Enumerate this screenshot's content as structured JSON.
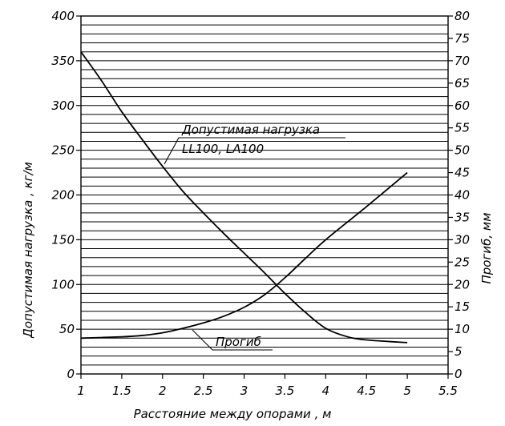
{
  "chart_data": {
    "type": "line",
    "xlabel": "Расстояние между опорами , м",
    "ylabel": "Допустимая нагрузка , кг/м",
    "y2label": "Прогиб, мм",
    "xlim": [
      1,
      5.5
    ],
    "ylim": [
      0,
      400
    ],
    "y2lim": [
      0,
      80
    ],
    "x_ticks": [
      "1",
      "1.5",
      "2",
      "2.5",
      "3",
      "3.5",
      "4",
      "4.5",
      "5",
      "5.5"
    ],
    "y_ticks": [
      "0",
      "50",
      "100",
      "150",
      "200",
      "250",
      "300",
      "350",
      "400"
    ],
    "y2_ticks": [
      "0",
      "5",
      "10",
      "15",
      "20",
      "25",
      "30",
      "35",
      "40",
      "45",
      "50",
      "55",
      "60",
      "65",
      "70",
      "75",
      "80"
    ],
    "grid": "horizontal",
    "series": [
      {
        "name": "Допустимая нагрузка LL100, LA100",
        "axis": "left",
        "x": [
          1,
          1.25,
          1.5,
          1.75,
          2,
          2.25,
          2.5,
          2.75,
          3,
          3.25,
          3.5,
          3.75,
          4,
          4.25,
          4.5,
          5
        ],
        "y": [
          360,
          328,
          293,
          262,
          232,
          204,
          180,
          157,
          135,
          113,
          90,
          69,
          51,
          42,
          38,
          35
        ]
      },
      {
        "name": "Прогиб",
        "axis": "right",
        "x": [
          1,
          1.5,
          1.75,
          2,
          2.25,
          2.5,
          2.75,
          3,
          3.25,
          3.5,
          3.75,
          4,
          4.5,
          5
        ],
        "y": [
          8,
          8.3,
          8.6,
          9.2,
          10.2,
          11.4,
          12.9,
          14.9,
          17.7,
          21.5,
          25.8,
          30,
          37.4,
          45
        ]
      }
    ],
    "annotations": [
      {
        "line1": "Допустимая нагрузка",
        "line2": "LL100, LA100"
      },
      {
        "text": "Прогиб"
      }
    ]
  }
}
